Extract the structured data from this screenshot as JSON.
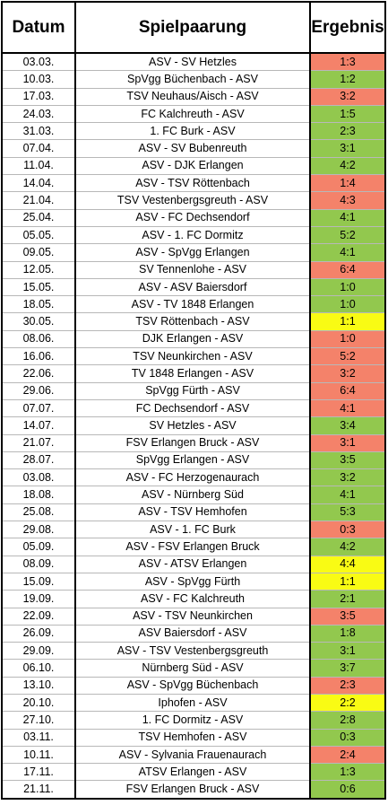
{
  "headers": {
    "date": "Datum",
    "match": "Spielpaarung",
    "result": "Ergebnis"
  },
  "colors": {
    "loss": "#f4826a",
    "win": "#92c84e",
    "draw": "#f9fb14"
  },
  "rows": [
    {
      "date": "03.03.",
      "match": "ASV - SV Hetzles",
      "result": "1:3",
      "outcome": "loss"
    },
    {
      "date": "10.03.",
      "match": "SpVgg Büchenbach - ASV",
      "result": "1:2",
      "outcome": "win"
    },
    {
      "date": "17.03.",
      "match": "TSV Neuhaus/Aisch - ASV",
      "result": "3:2",
      "outcome": "loss"
    },
    {
      "date": "24.03.",
      "match": "FC Kalchreuth - ASV",
      "result": "1:5",
      "outcome": "win"
    },
    {
      "date": "31.03.",
      "match": "1. FC Burk - ASV",
      "result": "2:3",
      "outcome": "win"
    },
    {
      "date": "07.04.",
      "match": "ASV - SV Bubenreuth",
      "result": "3:1",
      "outcome": "win"
    },
    {
      "date": "11.04.",
      "match": "ASV - DJK Erlangen",
      "result": "4:2",
      "outcome": "win"
    },
    {
      "date": "14.04.",
      "match": "ASV - TSV Röttenbach",
      "result": "1:4",
      "outcome": "loss"
    },
    {
      "date": "21.04.",
      "match": "TSV Vestenbergsgreuth - ASV",
      "result": "4:3",
      "outcome": "loss"
    },
    {
      "date": "25.04.",
      "match": "ASV - FC Dechsendorf",
      "result": "4:1",
      "outcome": "win"
    },
    {
      "date": "05.05.",
      "match": "ASV - 1. FC Dormitz",
      "result": "5:2",
      "outcome": "win"
    },
    {
      "date": "09.05.",
      "match": "ASV - SpVgg Erlangen",
      "result": "4:1",
      "outcome": "win"
    },
    {
      "date": "12.05.",
      "match": "SV Tennenlohe - ASV",
      "result": "6:4",
      "outcome": "loss"
    },
    {
      "date": "15.05.",
      "match": "ASV - ASV Baiersdorf",
      "result": "1:0",
      "outcome": "win"
    },
    {
      "date": "18.05.",
      "match": "ASV - TV 1848 Erlangen",
      "result": "1:0",
      "outcome": "win"
    },
    {
      "date": "30.05.",
      "match": "TSV Röttenbach - ASV",
      "result": "1:1",
      "outcome": "draw"
    },
    {
      "date": "08.06.",
      "match": "DJK Erlangen - ASV",
      "result": "1:0",
      "outcome": "loss"
    },
    {
      "date": "16.06.",
      "match": "TSV Neunkirchen - ASV",
      "result": "5:2",
      "outcome": "loss"
    },
    {
      "date": "22.06.",
      "match": "TV 1848 Erlangen - ASV",
      "result": "3:2",
      "outcome": "loss"
    },
    {
      "date": "29.06.",
      "match": "SpVgg Fürth - ASV",
      "result": "6:4",
      "outcome": "loss"
    },
    {
      "date": "07.07.",
      "match": "FC Dechsendorf - ASV",
      "result": "4:1",
      "outcome": "loss"
    },
    {
      "date": "14.07.",
      "match": "SV Hetzles - ASV",
      "result": "3:4",
      "outcome": "win"
    },
    {
      "date": "21.07.",
      "match": "FSV Erlangen Bruck - ASV",
      "result": "3:1",
      "outcome": "loss"
    },
    {
      "date": "28.07.",
      "match": "SpVgg Erlangen - ASV",
      "result": "3:5",
      "outcome": "win"
    },
    {
      "date": "03.08.",
      "match": "ASV - FC Herzogenaurach",
      "result": "3:2",
      "outcome": "win"
    },
    {
      "date": "18.08.",
      "match": "ASV - Nürnberg Süd",
      "result": "4:1",
      "outcome": "win"
    },
    {
      "date": "25.08.",
      "match": "ASV - TSV Hemhofen",
      "result": "5:3",
      "outcome": "win"
    },
    {
      "date": "29.08.",
      "match": "ASV - 1. FC Burk",
      "result": "0:3",
      "outcome": "loss"
    },
    {
      "date": "05.09.",
      "match": "ASV - FSV Erlangen Bruck",
      "result": "4:2",
      "outcome": "win"
    },
    {
      "date": "08.09.",
      "match": "ASV - ATSV Erlangen",
      "result": "4:4",
      "outcome": "draw"
    },
    {
      "date": "15.09.",
      "match": "ASV - SpVgg Fürth",
      "result": "1:1",
      "outcome": "draw"
    },
    {
      "date": "19.09.",
      "match": "ASV - FC Kalchreuth",
      "result": "2:1",
      "outcome": "win"
    },
    {
      "date": "22.09.",
      "match": "ASV - TSV Neunkirchen",
      "result": "3:5",
      "outcome": "loss"
    },
    {
      "date": "26.09.",
      "match": "ASV Baiersdorf - ASV",
      "result": "1:8",
      "outcome": "win"
    },
    {
      "date": "29.09.",
      "match": "ASV - TSV Vestenbergsgreuth",
      "result": "3:1",
      "outcome": "win"
    },
    {
      "date": "06.10.",
      "match": "Nürnberg Süd - ASV",
      "result": "3:7",
      "outcome": "win"
    },
    {
      "date": "13.10.",
      "match": "ASV - SpVgg Büchenbach",
      "result": "2:3",
      "outcome": "loss"
    },
    {
      "date": "20.10.",
      "match": "Iphofen - ASV",
      "result": "2:2",
      "outcome": "draw"
    },
    {
      "date": "27.10.",
      "match": "1. FC Dormitz - ASV",
      "result": "2:8",
      "outcome": "win"
    },
    {
      "date": "03.11.",
      "match": "TSV Hemhofen - ASV",
      "result": "0:3",
      "outcome": "win"
    },
    {
      "date": "10.11.",
      "match": "ASV - Sylvania Frauenaurach",
      "result": "2:4",
      "outcome": "loss"
    },
    {
      "date": "17.11.",
      "match": "ATSV Erlangen - ASV",
      "result": "1:3",
      "outcome": "win"
    },
    {
      "date": "21.11.",
      "match": "FSV Erlangen Bruck - ASV",
      "result": "0:6",
      "outcome": "win"
    }
  ]
}
